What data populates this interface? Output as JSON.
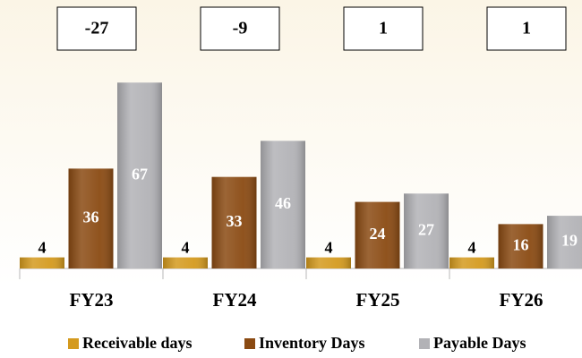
{
  "chart_data": {
    "type": "bar",
    "categories": [
      "FY23",
      "FY24",
      "FY25",
      "FY26"
    ],
    "cycle_values": [
      -27,
      -9,
      1,
      1
    ],
    "series": [
      {
        "name": "Receivable days",
        "color": "#d49a1e",
        "values": [
          4,
          4,
          4,
          4
        ]
      },
      {
        "name": "Inventory Days",
        "color": "#8a4a12",
        "values": [
          36,
          33,
          24,
          16
        ]
      },
      {
        "name": "Payable Days",
        "color": "#b2b2b6",
        "values": [
          67,
          46,
          27,
          19
        ]
      }
    ]
  }
}
